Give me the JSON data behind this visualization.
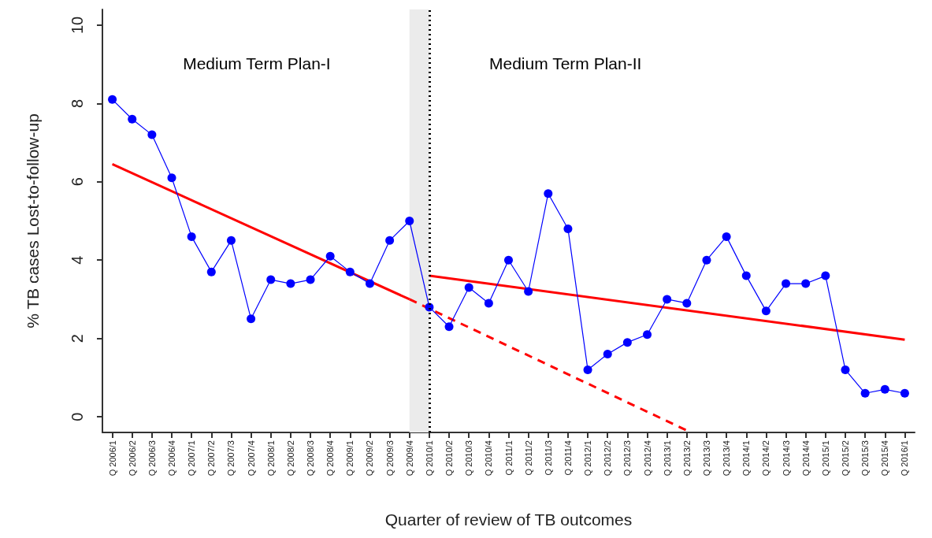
{
  "chart_data": {
    "type": "line",
    "xlabel": "Quarter of review of TB outcomes",
    "ylabel": "% TB cases Lost-to-follow-up",
    "categories": [
      "Q 2006/1",
      "Q 2006/2",
      "Q 2006/3",
      "Q 2006/4",
      "Q 2007/1",
      "Q 2007/2",
      "Q 2007/3",
      "Q 2007/4",
      "Q 2008/1",
      "Q 2008/2",
      "Q 2008/3",
      "Q 2008/4",
      "Q 2009/1",
      "Q 2009/2",
      "Q 2009/3",
      "Q 2009/4",
      "Q 2010/1",
      "Q 2010/2",
      "Q 2010/3",
      "Q 2010/4",
      "Q 2011/1",
      "Q 2011/2",
      "Q 2011/3",
      "Q 2011/4",
      "Q 2012/1",
      "Q 2012/2",
      "Q 2012/3",
      "Q 2012/4",
      "Q 2013/1",
      "Q 2013/2",
      "Q 2013/3",
      "Q 2013/4",
      "Q 2014/1",
      "Q 2014/2",
      "Q 2014/3",
      "Q 2014/4",
      "Q 2015/1",
      "Q 2015/2",
      "Q 2015/3",
      "Q 2015/4",
      "Q 2016/1"
    ],
    "series": [
      {
        "color": "#0000ff",
        "marker": "circle",
        "values": [
          8.1,
          7.6,
          7.2,
          6.1,
          4.6,
          3.7,
          4.5,
          2.5,
          3.5,
          3.4,
          3.5,
          4.1,
          3.7,
          3.4,
          4.5,
          5.0,
          2.8,
          2.3,
          3.3,
          2.9,
          4.0,
          3.2,
          5.7,
          4.8,
          1.2,
          1.6,
          1.9,
          2.1,
          3.0,
          2.9,
          4.0,
          4.6,
          3.6,
          2.7,
          3.4,
          3.4,
          3.6,
          1.2,
          0.6,
          0.7,
          0.6
        ]
      },
      {
        "color": "#ff0000",
        "marker": "none",
        "line_style": "solid",
        "x": [
          "Q 2006/1",
          "Q 2009/4"
        ],
        "values": [
          6.45,
          3.0
        ]
      },
      {
        "color": "#ff0000",
        "marker": "none",
        "line_style": "dashed",
        "x": [
          "Q 2009/4",
          "Q 2013/2"
        ],
        "values": [
          3.0,
          -0.35
        ]
      },
      {
        "color": "#ff0000",
        "marker": "none",
        "line_style": "solid",
        "x": [
          "Q 2010/1",
          "Q 2016/1"
        ],
        "values": [
          3.6,
          1.97
        ]
      }
    ],
    "ylim": [
      -0.4,
      10.4
    ],
    "yticks": [
      0,
      2,
      4,
      6,
      8,
      10
    ],
    "ref_lines": [
      {
        "axis": "x",
        "value": "Q 2010/1",
        "color": "#000000",
        "line_style": "dotted"
      }
    ],
    "bands": [
      {
        "axis": "x",
        "from": "Q 2009/4",
        "to": "Q 2010/1",
        "color": "#ebebeb"
      }
    ],
    "annotations": [
      "Medium Term Plan-I",
      "Medium Term Plan-II"
    ],
    "grid": false
  }
}
